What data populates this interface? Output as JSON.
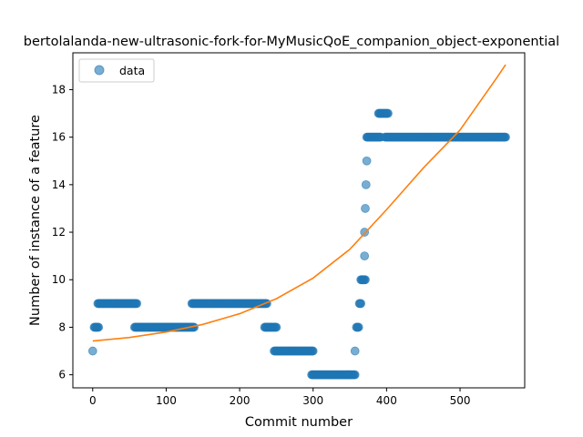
{
  "chart_data": {
    "type": "scatter",
    "title": "bertolalanda-new-ultrasonic-fork-for-MyMusicQoE_companion_object-exponential",
    "xlabel": "Commit number",
    "ylabel": "Number of instance of a feature",
    "xlim": [
      -27,
      588
    ],
    "ylim": [
      5.45,
      19.55
    ],
    "x_ticks": [
      0,
      100,
      200,
      300,
      400,
      500
    ],
    "y_ticks": [
      6,
      8,
      10,
      12,
      14,
      16,
      18
    ],
    "grid": false,
    "legend": {
      "placement": "top-left",
      "entries": [
        "data"
      ]
    },
    "colors": {
      "data": "#1f77b4",
      "fit": "#ff7f0e"
    },
    "series": [
      {
        "name": "data",
        "kind": "scatter",
        "segments": [
          {
            "x": [
              0,
              0
            ],
            "y": 7
          },
          {
            "x": [
              2,
              8
            ],
            "y": 8
          },
          {
            "x": [
              7,
              60
            ],
            "y": 9
          },
          {
            "x": [
              57,
              138
            ],
            "y": 8
          },
          {
            "x": [
              135,
              237
            ],
            "y": 9
          },
          {
            "x": [
              234,
              250
            ],
            "y": 8
          },
          {
            "x": [
              247,
              300
            ],
            "y": 7
          },
          {
            "x": [
              298,
              357
            ],
            "y": 6
          },
          {
            "x": [
              357,
              357
            ],
            "y": 7
          },
          {
            "x": [
              359,
              362
            ],
            "y": 8
          },
          {
            "x": [
              363,
              365
            ],
            "y": 9
          },
          {
            "x": [
              365,
              371
            ],
            "y": 10
          },
          {
            "x": [
              370,
              370
            ],
            "y": 11
          },
          {
            "x": [
              370,
              370
            ],
            "y": 12
          },
          {
            "x": [
              371,
              371
            ],
            "y": 13
          },
          {
            "x": [
              372,
              372
            ],
            "y": 14
          },
          {
            "x": [
              373,
              373
            ],
            "y": 15
          },
          {
            "x": [
              373,
              392
            ],
            "y": 16
          },
          {
            "x": [
              389,
              402
            ],
            "y": 17
          },
          {
            "x": [
              398,
              562
            ],
            "y": 16
          }
        ]
      },
      {
        "name": "",
        "kind": "line",
        "x": [
          0,
          50,
          100,
          150,
          200,
          250,
          300,
          350,
          400,
          450,
          500,
          550,
          562
        ],
        "y": [
          7.42,
          7.57,
          7.8,
          8.12,
          8.57,
          9.2,
          10.07,
          11.28,
          12.95,
          14.7,
          16.3,
          18.5,
          19.05
        ]
      }
    ]
  }
}
